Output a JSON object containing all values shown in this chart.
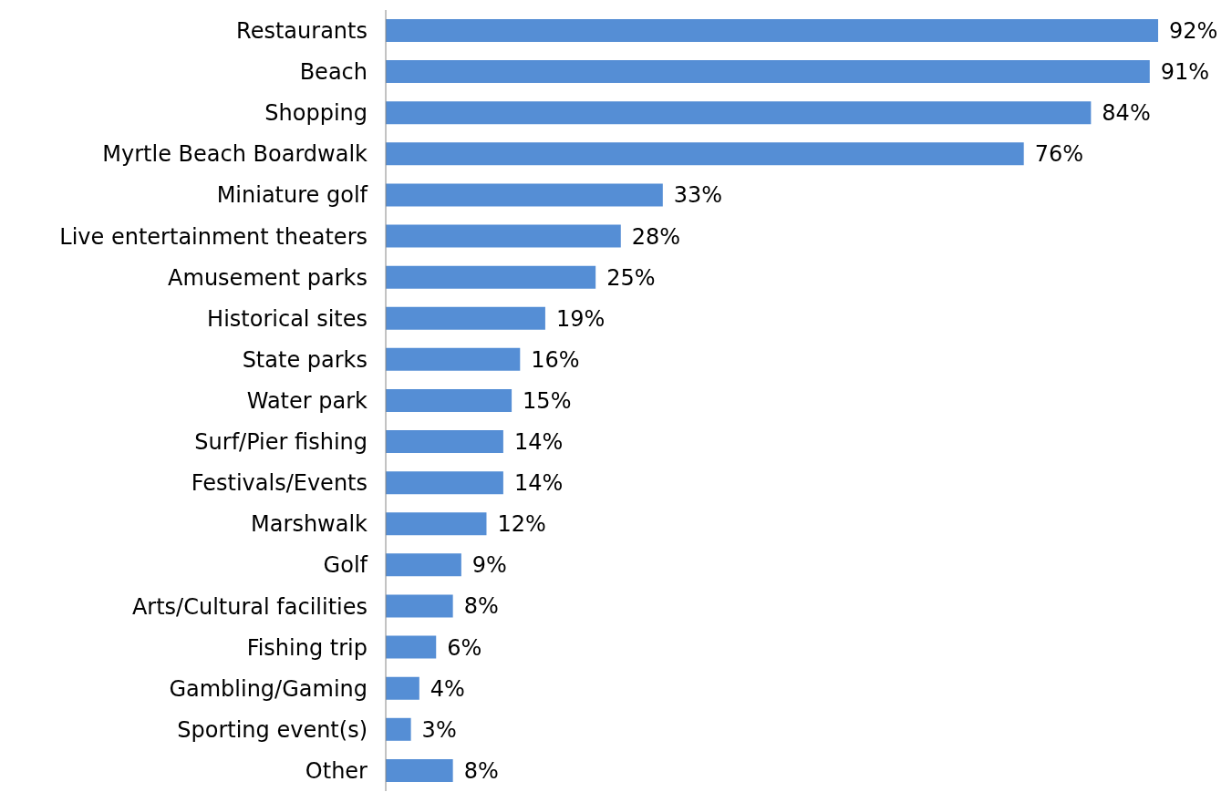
{
  "chart_data": {
    "type": "bar",
    "orientation": "horizontal",
    "categories": [
      "Restaurants",
      "Beach",
      "Shopping",
      "Myrtle Beach Boardwalk",
      "Miniature golf",
      "Live entertainment theaters",
      "Amusement parks",
      "Historical sites",
      "State parks",
      "Water park",
      "Surf/Pier fishing",
      "Festivals/Events",
      "Marshwalk",
      "Golf",
      "Arts/Cultural facilities",
      "Fishing trip",
      "Gambling/Gaming",
      "Sporting event(s)",
      "Other"
    ],
    "values": [
      92,
      91,
      84,
      76,
      33,
      28,
      25,
      19,
      16,
      15,
      14,
      14,
      12,
      9,
      8,
      6,
      4,
      3,
      8
    ],
    "value_labels": [
      "92%",
      "91%",
      "84%",
      "76%",
      "33%",
      "28%",
      "25%",
      "19%",
      "16%",
      "15%",
      "14%",
      "14%",
      "12%",
      "9%",
      "8%",
      "6%",
      "4%",
      "3%",
      "8%"
    ],
    "color": "#558ed5",
    "grid": false,
    "legend": false
  }
}
